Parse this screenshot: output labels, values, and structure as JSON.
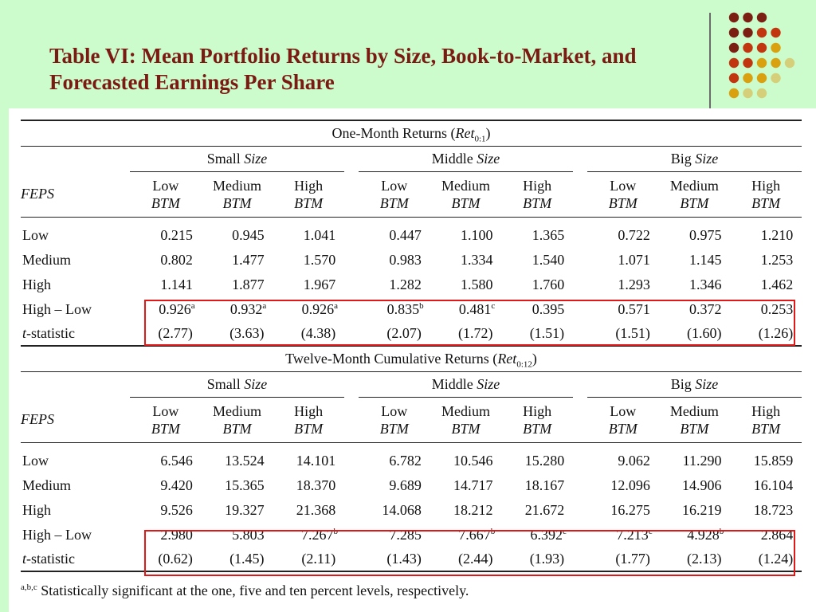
{
  "title": "Table VI: Mean Portfolio Returns by Size, Book-to-Market, and Forecasted Earnings Per Share",
  "table": {
    "row_header": "FEPS",
    "size_groups": [
      {
        "name": "Small",
        "suffix": "Size"
      },
      {
        "name": "Middle",
        "suffix": "Size"
      },
      {
        "name": "Big",
        "suffix": "Size"
      }
    ],
    "btm_columns": [
      {
        "top": "Low",
        "bottom": "BTM"
      },
      {
        "top": "Medium",
        "bottom": "BTM"
      },
      {
        "top": "High",
        "bottom": "BTM"
      }
    ],
    "panels": [
      {
        "title": "One-Month Returns (",
        "ret_label": "Ret",
        "ret_sub": "0:1",
        "title_close": ")",
        "rows": [
          {
            "label": "Low",
            "values": [
              "0.215",
              "0.945",
              "1.041",
              "0.447",
              "1.100",
              "1.365",
              "0.722",
              "0.975",
              "1.210"
            ]
          },
          {
            "label": "Medium",
            "values": [
              "0.802",
              "1.477",
              "1.570",
              "0.983",
              "1.334",
              "1.540",
              "1.071",
              "1.145",
              "1.253"
            ]
          },
          {
            "label": "High",
            "values": [
              "1.141",
              "1.877",
              "1.967",
              "1.282",
              "1.580",
              "1.760",
              "1.293",
              "1.346",
              "1.462"
            ]
          },
          {
            "label": "High – Low",
            "values": [
              "0.926",
              "0.932",
              "0.926",
              "0.835",
              "0.481",
              "0.395",
              "0.571",
              "0.372",
              "0.253"
            ],
            "marks": [
              "a",
              "a",
              "a",
              "b",
              "c",
              "",
              "",
              "",
              ""
            ]
          },
          {
            "label_prefix": "t",
            "label": "-statistic",
            "values": [
              "(2.77)",
              "(3.63)",
              "(4.38)",
              "(2.07)",
              "(1.72)",
              "(1.51)",
              "(1.51)",
              "(1.60)",
              "(1.26)"
            ]
          }
        ]
      },
      {
        "title": "Twelve-Month Cumulative Returns (",
        "ret_label": "Ret",
        "ret_sub": "0:12",
        "title_close": ")",
        "rows": [
          {
            "label": "Low",
            "values": [
              "6.546",
              "13.524",
              "14.101",
              "6.782",
              "10.546",
              "15.280",
              "9.062",
              "11.290",
              "15.859"
            ]
          },
          {
            "label": "Medium",
            "values": [
              "9.420",
              "15.365",
              "18.370",
              "9.689",
              "14.717",
              "18.167",
              "12.096",
              "14.906",
              "16.104"
            ]
          },
          {
            "label": "High",
            "values": [
              "9.526",
              "19.327",
              "21.368",
              "14.068",
              "18.212",
              "21.672",
              "16.275",
              "16.219",
              "18.723"
            ]
          },
          {
            "label": "High – Low",
            "values": [
              "2.980",
              "5.803",
              "7.267",
              "7.285",
              "7.667",
              "6.392",
              "7.213",
              "4.928",
              "2.864"
            ],
            "marks": [
              "",
              "",
              "b",
              "",
              "b",
              "c",
              "c",
              "b",
              ""
            ]
          },
          {
            "label_prefix": "t",
            "label": "-statistic",
            "values": [
              "(0.62)",
              "(1.45)",
              "(2.11)",
              "(1.43)",
              "(2.44)",
              "(1.93)",
              "(1.77)",
              "(2.13)",
              "(1.24)"
            ]
          }
        ]
      }
    ],
    "footnote_marks": "a,b,c",
    "footnote": "Statistically significant at the one, five and ten percent levels, respectively."
  },
  "colors": {
    "background": "#ccfccc",
    "title": "#7a1a12",
    "highlight_box": "#e01818",
    "dot_palette": [
      "#7a1f12",
      "#c2360f",
      "#d9a010",
      "#d4cf78"
    ]
  }
}
